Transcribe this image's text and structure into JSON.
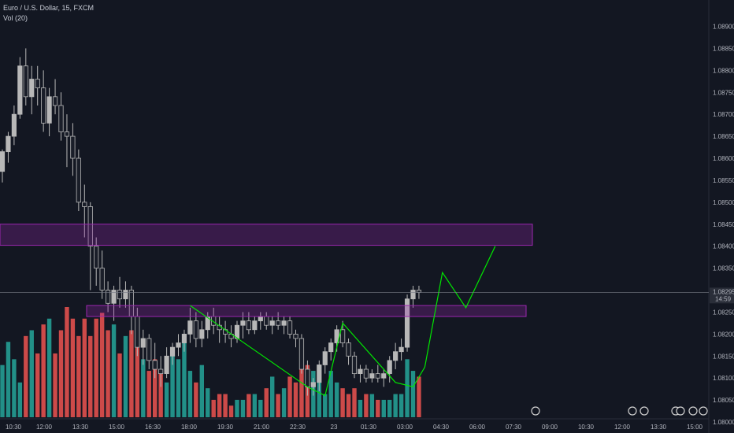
{
  "legend": {
    "symbol": "Euro / U.S. Dollar, 15, FXCM",
    "indicator": "Vol (20)"
  },
  "price_scale": {
    "ticks": [
      "1.08900",
      "1.08850",
      "1.08800",
      "1.08750",
      "1.08700",
      "1.08650",
      "1.08600",
      "1.08550",
      "1.08500",
      "1.08450",
      "1.08400",
      "1.08350",
      "1.08300",
      "1.08250",
      "1.08200",
      "1.08150",
      "1.08100",
      "1.08050",
      "1.08000"
    ],
    "last_price": "1.08295",
    "countdown": "14:59"
  },
  "time_scale": {
    "ticks": [
      "10:30",
      "12:00",
      "13:30",
      "15:00",
      "16:30",
      "18:00",
      "19:30",
      "21:00",
      "22:30",
      "23",
      "01:30",
      "03:00",
      "04:30",
      "06:00",
      "07:30",
      "09:00",
      "10:30",
      "12:00",
      "13:30",
      "15:00"
    ]
  },
  "colors": {
    "up": "#b8b8b8",
    "down": "#1a1e29",
    "vol_up": "#26a69a",
    "vol_down": "#ef5350",
    "zone": "#9c27b0",
    "path": "#00e600"
  },
  "chart_data": {
    "type": "candlestick",
    "interval": "15",
    "ylim": [
      1.07975,
      1.0896
    ],
    "zones": [
      {
        "top": 1.0845,
        "bottom": 1.08402
      },
      {
        "top": 1.08265,
        "bottom": 1.0824
      }
    ],
    "candles": [
      [
        1.0857,
        1.0862,
        1.08545,
        1.08615
      ],
      [
        1.08615,
        1.0866,
        1.0859,
        1.0865
      ],
      [
        1.0865,
        1.0872,
        1.0863,
        1.087
      ],
      [
        1.087,
        1.0883,
        1.0869,
        1.0881
      ],
      [
        1.0881,
        1.0885,
        1.0872,
        1.0874
      ],
      [
        1.0874,
        1.0881,
        1.087,
        1.0878
      ],
      [
        1.0878,
        1.0881,
        1.0872,
        1.0876
      ],
      [
        1.0876,
        1.088,
        1.0866,
        1.0868
      ],
      [
        1.0868,
        1.0876,
        1.0865,
        1.0874
      ],
      [
        1.0874,
        1.0878,
        1.087,
        1.0872
      ],
      [
        1.0872,
        1.0875,
        1.0864,
        1.0866
      ],
      [
        1.0866,
        1.087,
        1.0858,
        1.0865
      ],
      [
        1.0865,
        1.0868,
        1.0856,
        1.086
      ],
      [
        1.086,
        1.0862,
        1.0848,
        1.085
      ],
      [
        1.085,
        1.0854,
        1.0842,
        1.0849
      ],
      [
        1.0849,
        1.085,
        1.083,
        1.084
      ],
      [
        1.084,
        1.0842,
        1.0831,
        1.0835
      ],
      [
        1.0835,
        1.0839,
        1.0828,
        1.083
      ],
      [
        1.083,
        1.0832,
        1.0825,
        1.0827
      ],
      [
        1.0827,
        1.0831,
        1.0823,
        1.083
      ],
      [
        1.083,
        1.0833,
        1.0826,
        1.0828
      ],
      [
        1.0828,
        1.0832,
        1.0826,
        1.083
      ],
      [
        1.083,
        1.0831,
        1.082,
        1.0824
      ],
      [
        1.0824,
        1.0826,
        1.0815,
        1.0817
      ],
      [
        1.0817,
        1.0821,
        1.0813,
        1.0819
      ],
      [
        1.0819,
        1.082,
        1.0812,
        1.0814
      ],
      [
        1.0814,
        1.0818,
        1.081,
        1.0812
      ],
      [
        1.0812,
        1.0815,
        1.0808,
        1.0811
      ],
      [
        1.0811,
        1.0817,
        1.081,
        1.0815
      ],
      [
        1.0815,
        1.0818,
        1.0813,
        1.0817
      ],
      [
        1.0817,
        1.082,
        1.0815,
        1.0818
      ],
      [
        1.0818,
        1.0821,
        1.0816,
        1.082
      ],
      [
        1.082,
        1.0826,
        1.0818,
        1.0823
      ],
      [
        1.0823,
        1.0825,
        1.0817,
        1.0819
      ],
      [
        1.0819,
        1.0823,
        1.0817,
        1.0821
      ],
      [
        1.0821,
        1.0825,
        1.0819,
        1.0824
      ],
      [
        1.0824,
        1.0826,
        1.082,
        1.0822
      ],
      [
        1.0822,
        1.0824,
        1.0818,
        1.0821
      ],
      [
        1.0821,
        1.0823,
        1.0818,
        1.082
      ],
      [
        1.082,
        1.0822,
        1.0817,
        1.0819
      ],
      [
        1.0819,
        1.0823,
        1.0818,
        1.0822
      ],
      [
        1.0822,
        1.0825,
        1.0819,
        1.0823
      ],
      [
        1.0823,
        1.0825,
        1.082,
        1.0821
      ],
      [
        1.0821,
        1.0824,
        1.082,
        1.0823
      ],
      [
        1.0823,
        1.0825,
        1.0821,
        1.0824
      ],
      [
        1.0824,
        1.0825,
        1.0821,
        1.0822
      ],
      [
        1.0822,
        1.0824,
        1.082,
        1.0823
      ],
      [
        1.0823,
        1.0825,
        1.0821,
        1.0822
      ],
      [
        1.0822,
        1.0824,
        1.082,
        1.0823
      ],
      [
        1.0823,
        1.0824,
        1.0819,
        1.082
      ],
      [
        1.082,
        1.0821,
        1.0817,
        1.0819
      ],
      [
        1.0819,
        1.082,
        1.0811,
        1.0812
      ],
      [
        1.0812,
        1.0814,
        1.0806,
        1.0808
      ],
      [
        1.0808,
        1.081,
        1.0806,
        1.0809
      ],
      [
        1.0809,
        1.0814,
        1.0807,
        1.0813
      ],
      [
        1.0813,
        1.0817,
        1.0811,
        1.0816
      ],
      [
        1.0816,
        1.0819,
        1.0814,
        1.0818
      ],
      [
        1.0818,
        1.0822,
        1.0816,
        1.0821
      ],
      [
        1.0821,
        1.0823,
        1.0817,
        1.0818
      ],
      [
        1.0818,
        1.0819,
        1.0813,
        1.0815
      ],
      [
        1.0815,
        1.0816,
        1.081,
        1.0811
      ],
      [
        1.0811,
        1.0813,
        1.0809,
        1.0812
      ],
      [
        1.0812,
        1.0813,
        1.0809,
        1.081
      ],
      [
        1.081,
        1.0812,
        1.0809,
        1.0811
      ],
      [
        1.0811,
        1.0813,
        1.0809,
        1.081
      ],
      [
        1.081,
        1.0812,
        1.0808,
        1.0811
      ],
      [
        1.0811,
        1.0815,
        1.0809,
        1.0814
      ],
      [
        1.0814,
        1.0818,
        1.0812,
        1.0816
      ],
      [
        1.0816,
        1.0819,
        1.0814,
        1.0817
      ],
      [
        1.0817,
        1.0829,
        1.0816,
        1.0828
      ],
      [
        1.0828,
        1.0831,
        1.0826,
        1.083
      ],
      [
        1.083,
        1.0831,
        1.0828,
        1.08295
      ]
    ],
    "volumes": [
      9,
      13,
      10,
      6,
      14,
      15,
      11,
      16,
      17,
      11,
      15,
      19,
      17,
      14,
      17,
      14,
      17,
      18,
      15,
      16,
      11,
      14,
      15,
      12,
      10,
      8,
      10,
      8,
      6,
      12,
      10,
      13,
      8,
      6,
      9,
      5,
      3,
      4,
      4,
      2,
      3,
      3,
      4,
      4,
      3,
      5,
      7,
      4,
      5,
      7,
      6,
      9,
      9,
      8,
      6,
      4,
      8,
      6,
      5,
      4,
      5,
      3,
      4,
      4,
      3,
      3,
      3,
      4,
      4,
      10,
      8,
      7
    ],
    "path": [
      [
        32,
        1.08265
      ],
      [
        52,
        1.0808
      ],
      [
        55,
        1.0806
      ],
      [
        58,
        1.08225
      ],
      [
        67,
        1.0809
      ],
      [
        70,
        1.0808
      ],
      [
        72,
        1.08125
      ],
      [
        75,
        1.0834
      ],
      [
        79,
        1.0826
      ],
      [
        84,
        1.084
      ]
    ]
  }
}
